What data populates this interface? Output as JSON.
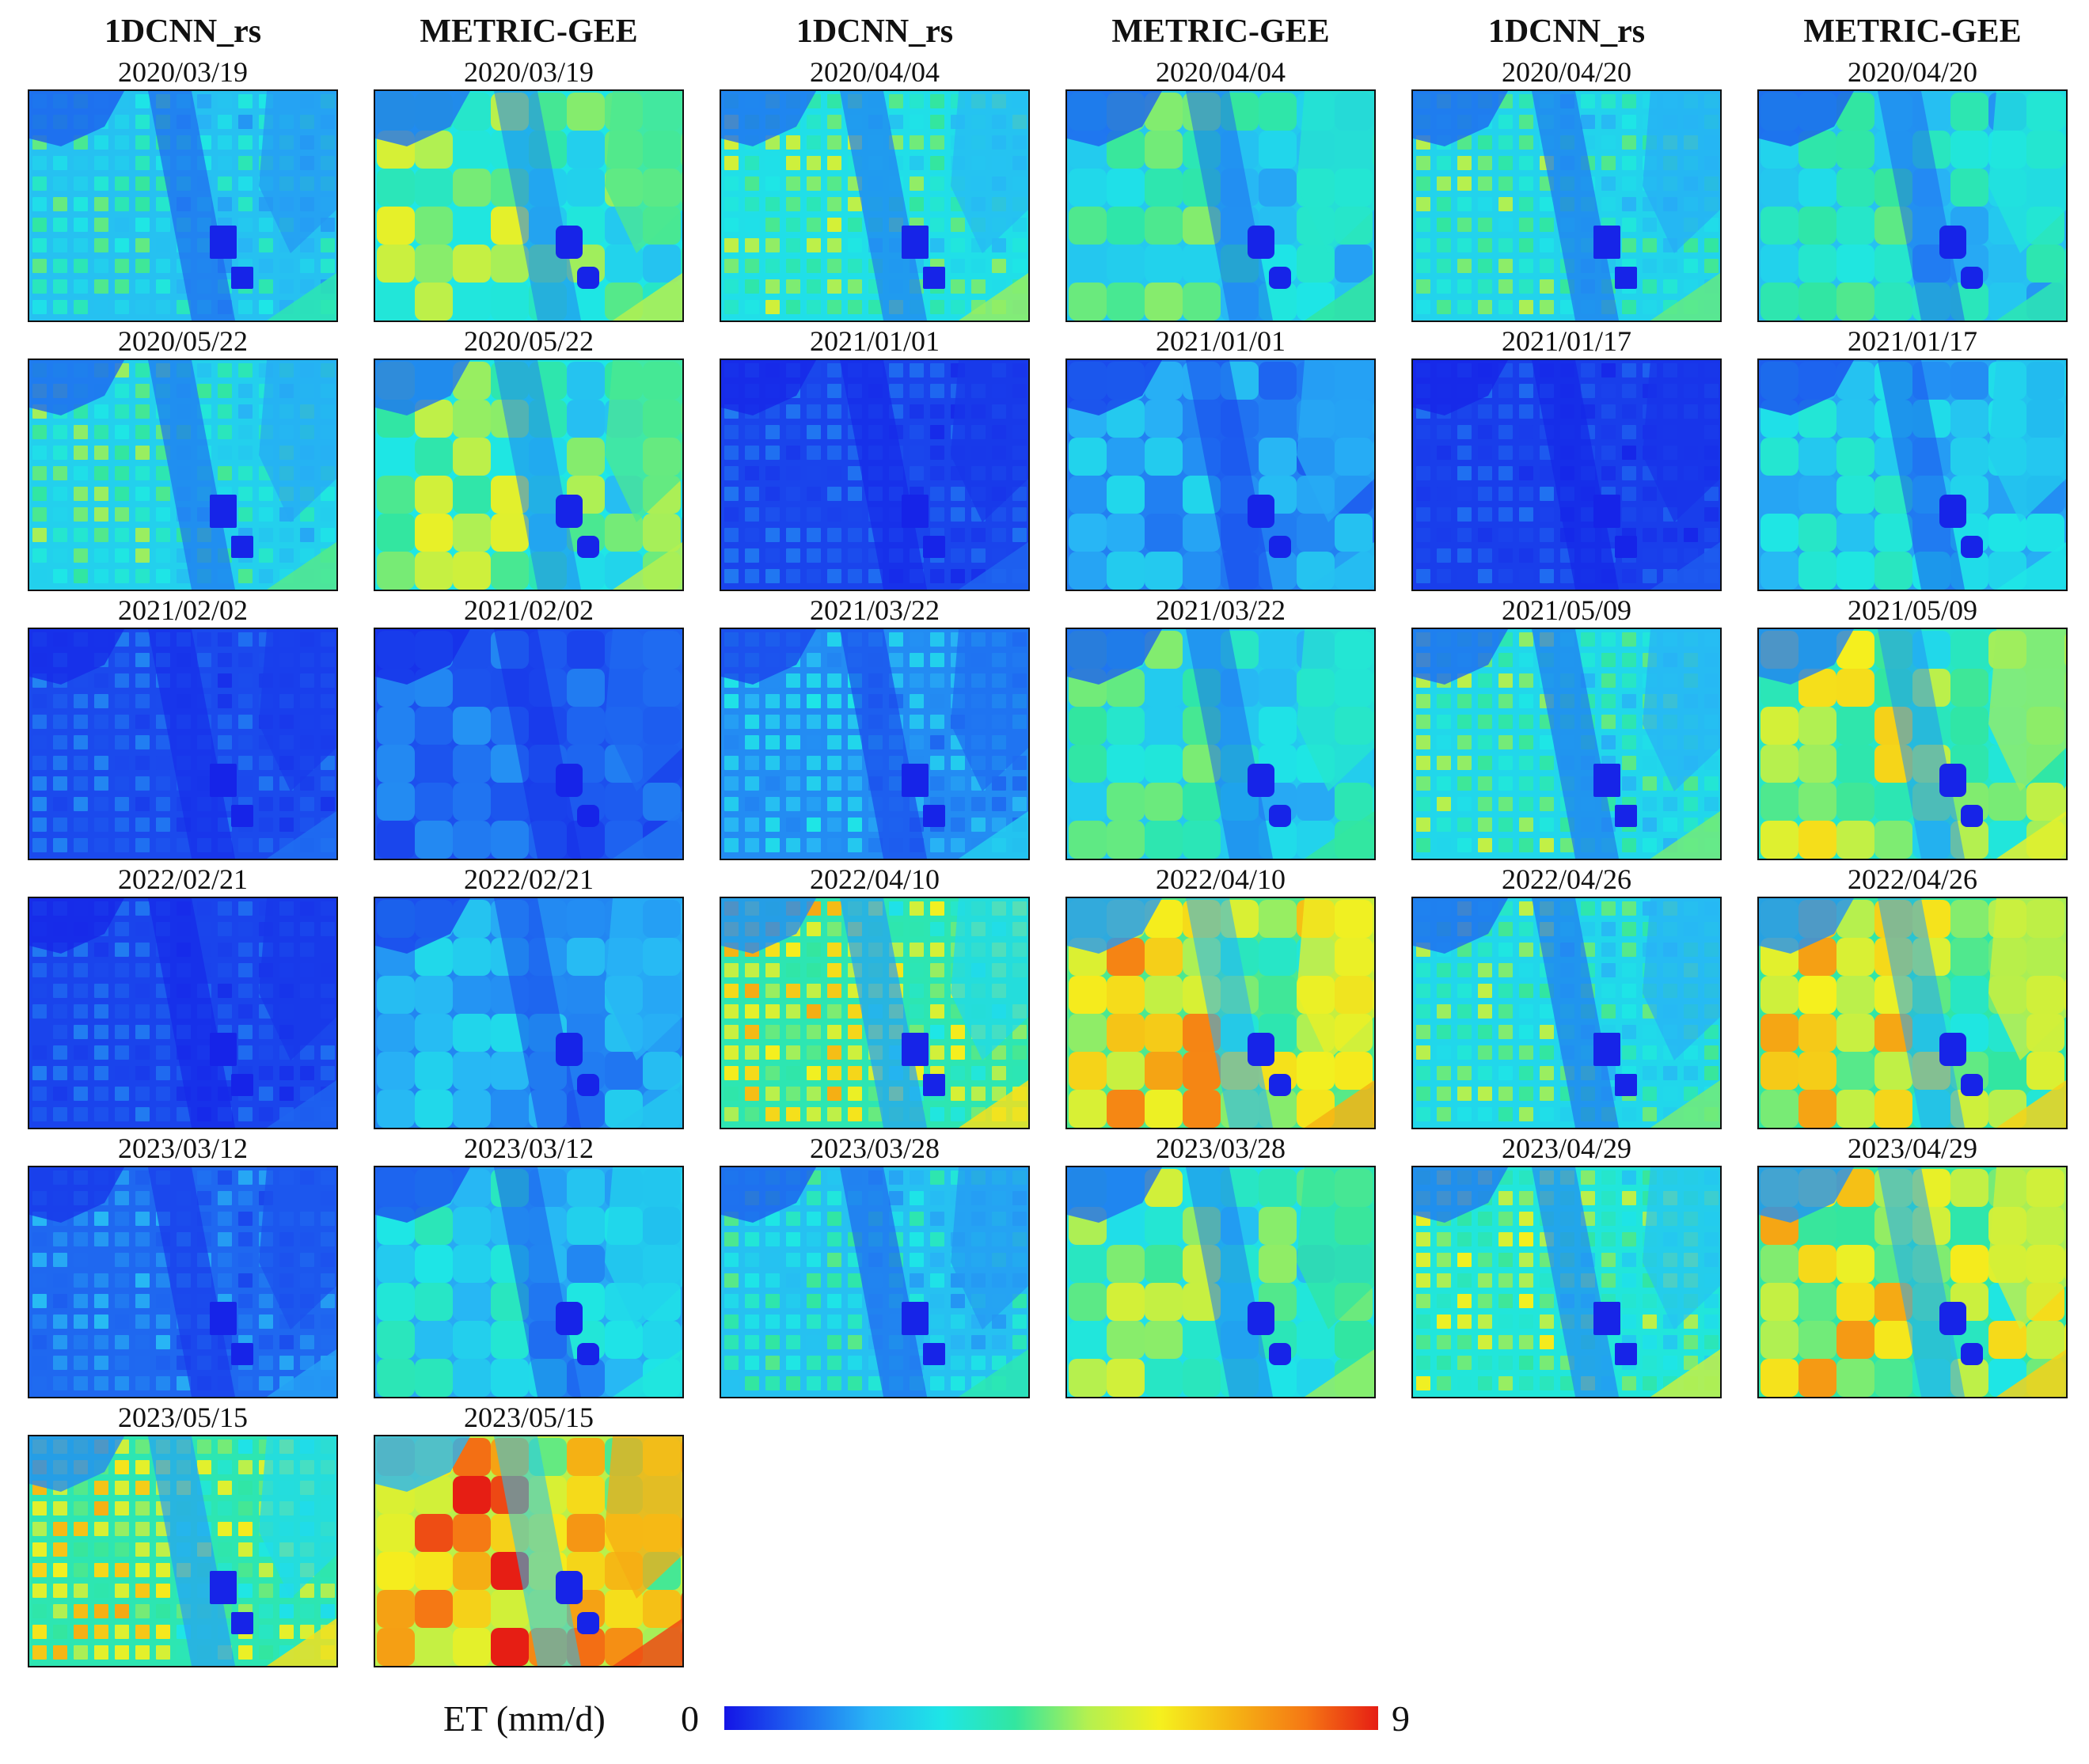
{
  "colormap": {
    "stops": [
      "#1414e6",
      "#1e64f0",
      "#28b4f5",
      "#1ee6e6",
      "#32e6a0",
      "#b4f050",
      "#f5f01e",
      "#f5b414",
      "#f57814",
      "#e61e14"
    ],
    "min_label": "0",
    "max_label": "9",
    "label": "ET (mm/d)"
  },
  "column_headers": [
    "1DCNN_rs",
    "METRIC-GEE",
    "1DCNN_rs",
    "METRIC-GEE",
    "1DCNN_rs",
    "METRIC-GEE"
  ],
  "panels": [
    {
      "model": "1DCNN_rs",
      "date": "2020/03/19",
      "mean_et": 3.0
    },
    {
      "model": "METRIC-GEE",
      "date": "2020/03/19",
      "mean_et": 4.0
    },
    {
      "model": "1DCNN_rs",
      "date": "2020/04/04",
      "mean_et": 3.8
    },
    {
      "model": "METRIC-GEE",
      "date": "2020/04/04",
      "mean_et": 3.2
    },
    {
      "model": "1DCNN_rs",
      "date": "2020/04/20",
      "mean_et": 3.5
    },
    {
      "model": "METRIC-GEE",
      "date": "2020/04/20",
      "mean_et": 3.0
    },
    {
      "model": "1DCNN_rs",
      "date": "2020/05/22",
      "mean_et": 3.4
    },
    {
      "model": "METRIC-GEE",
      "date": "2020/05/22",
      "mean_et": 4.0
    },
    {
      "model": "1DCNN_rs",
      "date": "2021/01/01",
      "mean_et": 0.8
    },
    {
      "model": "METRIC-GEE",
      "date": "2021/01/01",
      "mean_et": 1.8
    },
    {
      "model": "1DCNN_rs",
      "date": "2021/01/17",
      "mean_et": 0.7
    },
    {
      "model": "METRIC-GEE",
      "date": "2021/01/17",
      "mean_et": 2.4
    },
    {
      "model": "1DCNN_rs",
      "date": "2021/02/02",
      "mean_et": 0.9
    },
    {
      "model": "METRIC-GEE",
      "date": "2021/02/02",
      "mean_et": 1.0
    },
    {
      "model": "1DCNN_rs",
      "date": "2021/03/22",
      "mean_et": 2.0
    },
    {
      "model": "METRIC-GEE",
      "date": "2021/03/22",
      "mean_et": 3.2
    },
    {
      "model": "1DCNN_rs",
      "date": "2021/05/09",
      "mean_et": 3.6
    },
    {
      "model": "METRIC-GEE",
      "date": "2021/05/09",
      "mean_et": 4.6
    },
    {
      "model": "1DCNN_rs",
      "date": "2022/02/21",
      "mean_et": 0.8
    },
    {
      "model": "METRIC-GEE",
      "date": "2022/02/21",
      "mean_et": 1.9
    },
    {
      "model": "1DCNN_rs",
      "date": "2022/04/10",
      "mean_et": 5.0
    },
    {
      "model": "METRIC-GEE",
      "date": "2022/04/10",
      "mean_et": 5.6
    },
    {
      "model": "1DCNN_rs",
      "date": "2022/04/26",
      "mean_et": 3.6
    },
    {
      "model": "METRIC-GEE",
      "date": "2022/04/26",
      "mean_et": 5.2
    },
    {
      "model": "1DCNN_rs",
      "date": "2023/03/12",
      "mean_et": 1.4
    },
    {
      "model": "METRIC-GEE",
      "date": "2023/03/12",
      "mean_et": 2.5
    },
    {
      "model": "1DCNN_rs",
      "date": "2023/03/28",
      "mean_et": 3.0
    },
    {
      "model": "METRIC-GEE",
      "date": "2023/03/28",
      "mean_et": 3.8
    },
    {
      "model": "1DCNN_rs",
      "date": "2023/04/29",
      "mean_et": 4.2
    },
    {
      "model": "METRIC-GEE",
      "date": "2023/04/29",
      "mean_et": 5.2
    },
    {
      "model": "1DCNN_rs",
      "date": "2023/05/15",
      "mean_et": 5.0
    },
    {
      "model": "METRIC-GEE",
      "date": "2023/05/15",
      "mean_et": 6.8
    }
  ]
}
